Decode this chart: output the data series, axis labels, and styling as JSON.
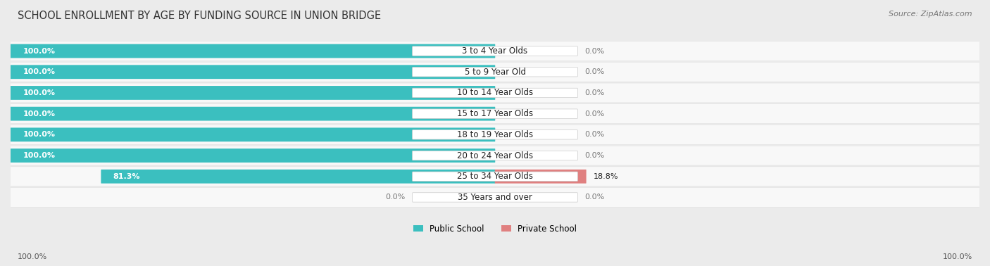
{
  "title": "SCHOOL ENROLLMENT BY AGE BY FUNDING SOURCE IN UNION BRIDGE",
  "source": "Source: ZipAtlas.com",
  "categories": [
    "3 to 4 Year Olds",
    "5 to 9 Year Old",
    "10 to 14 Year Olds",
    "15 to 17 Year Olds",
    "18 to 19 Year Olds",
    "20 to 24 Year Olds",
    "25 to 34 Year Olds",
    "35 Years and over"
  ],
  "public_values": [
    100.0,
    100.0,
    100.0,
    100.0,
    100.0,
    100.0,
    81.3,
    0.0
  ],
  "private_values": [
    0.0,
    0.0,
    0.0,
    0.0,
    0.0,
    0.0,
    18.8,
    0.0
  ],
  "public_color": "#3BBFBF",
  "private_color": "#E08080",
  "public_color_light": "#80D8D8",
  "private_color_light": "#F0AAAA",
  "bg_color": "#EBEBEB",
  "row_bg": "#F8F8F8",
  "label_bg": "#FFFFFF",
  "title_fontsize": 10.5,
  "label_fontsize": 8.5,
  "value_fontsize": 8.0,
  "axis_label_fontsize": 8,
  "max_val": 100.0,
  "left_axis_label": "100.0%",
  "right_axis_label": "100.0%",
  "legend_public": "Public School",
  "legend_private": "Private School"
}
